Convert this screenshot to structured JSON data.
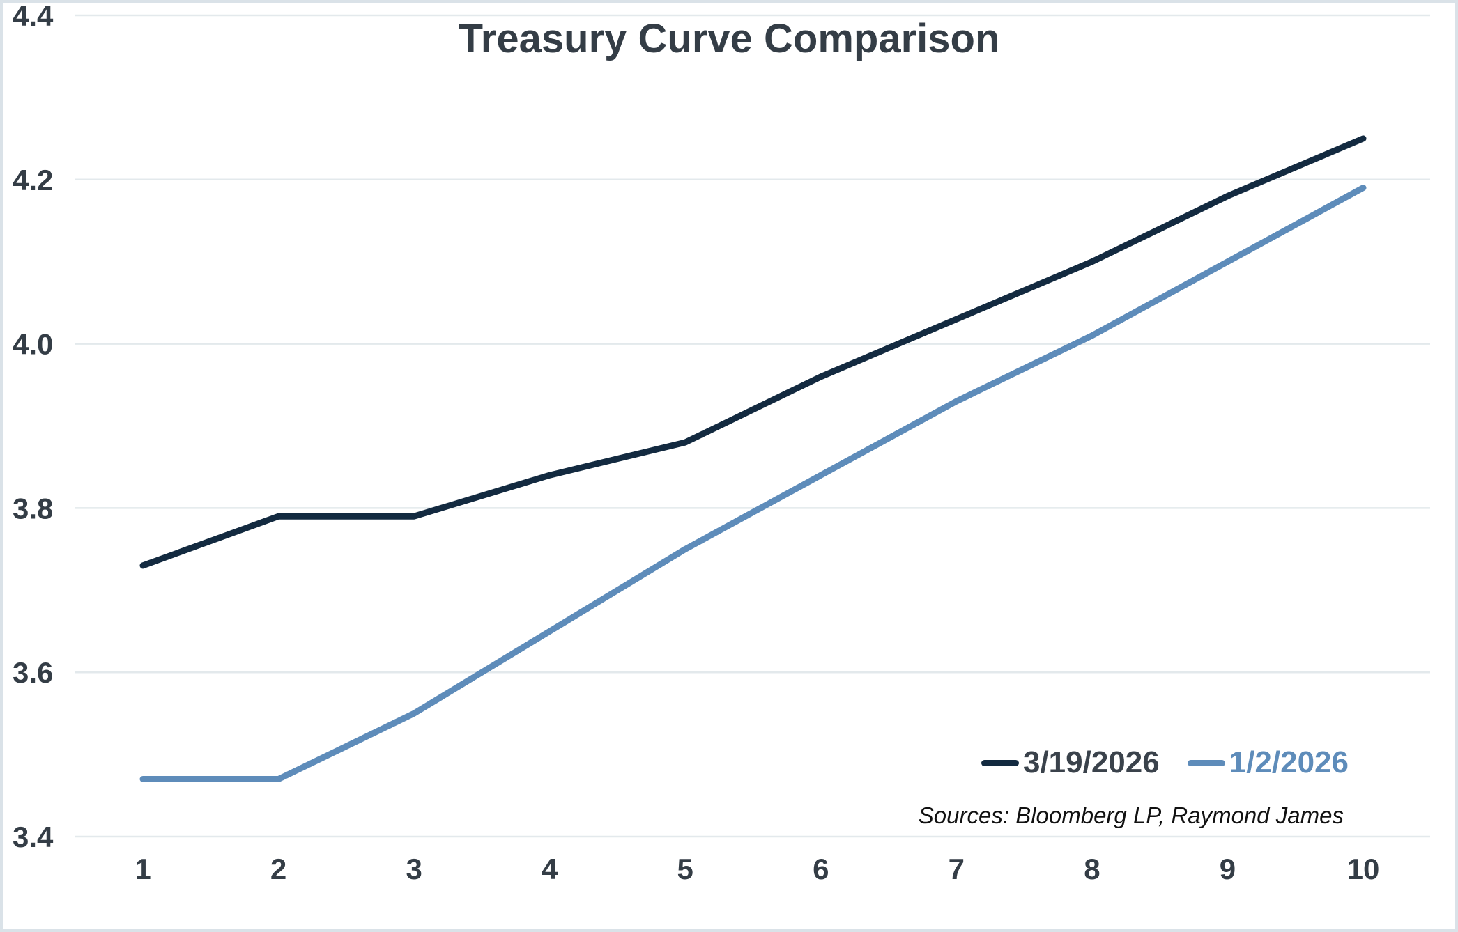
{
  "title": "Treasury Curve Comparison",
  "sources_note": "Sources: Bloomberg LP, Raymond James",
  "colors": {
    "series_1": "#132a40",
    "series_2": "#5e8cba",
    "title_text": "#343d46",
    "tick_text": "#343d46",
    "legend_text_1": "#3a424b",
    "legend_text_2": "#5e8cba",
    "grid": "#e3e9ec",
    "frame_border": "#dae2e8",
    "background": "#ffffff",
    "sources_text": "#111111"
  },
  "legend": {
    "items": [
      {
        "label": "3/19/2026",
        "swatch_color": "#132a40",
        "label_color": "#3a424b"
      },
      {
        "label": "1/2/2026",
        "swatch_color": "#5e8cba",
        "label_color": "#5e8cba"
      }
    ]
  },
  "chart_data": {
    "type": "line",
    "title": "Treasury Curve Comparison",
    "x": [
      1,
      2,
      3,
      4,
      5,
      6,
      7,
      8,
      9,
      10
    ],
    "xticklabels": [
      "1",
      "2",
      "3",
      "4",
      "5",
      "6",
      "7",
      "8",
      "9",
      "10"
    ],
    "series": [
      {
        "name": "3/19/2026",
        "color": "#132a40",
        "values": [
          3.73,
          3.79,
          3.79,
          3.84,
          3.88,
          3.96,
          4.03,
          4.1,
          4.18,
          4.25
        ]
      },
      {
        "name": "1/2/2026",
        "color": "#5e8cba",
        "values": [
          3.47,
          3.47,
          3.55,
          3.65,
          3.75,
          3.84,
          3.93,
          4.01,
          4.1,
          4.19
        ]
      }
    ],
    "xlabel": "",
    "ylabel": "",
    "ylim": [
      3.4,
      4.4
    ],
    "yticks": [
      3.4,
      3.6,
      3.8,
      4.0,
      4.2,
      4.4
    ],
    "yticklabels": [
      "3.4",
      "3.6",
      "3.8",
      "4.0",
      "4.2",
      "4.4"
    ],
    "grid": true,
    "legend_position": "bottom-right"
  }
}
